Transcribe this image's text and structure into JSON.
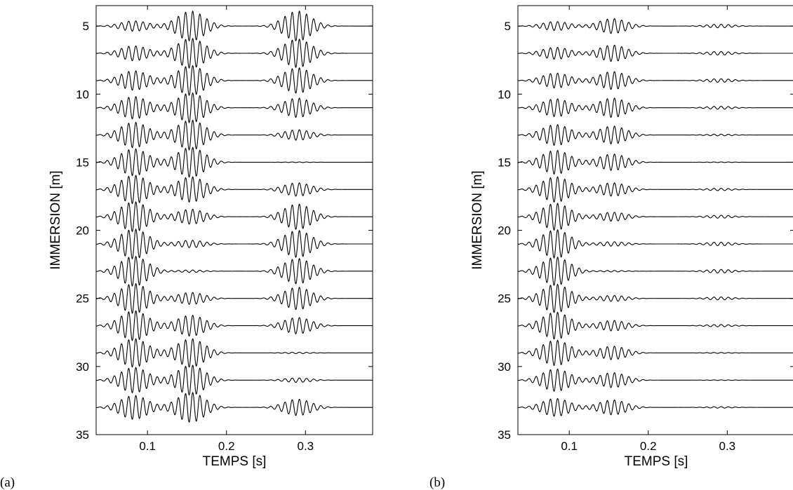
{
  "chart_data": [
    {
      "panel_label": "(a)",
      "type": "line",
      "xlabel": "TEMPS [s]",
      "ylabel": "IMMERSION [m]",
      "xlim": [
        0.035,
        0.385
      ],
      "ylim": [
        35,
        3.5
      ],
      "y_inverted": true,
      "xticks": [
        0.1,
        0.2,
        0.3
      ],
      "yticks": [
        5,
        10,
        15,
        20,
        25,
        30,
        35
      ],
      "grid": false,
      "carrier_frequency_hz": 110,
      "trace_spacing_m": 2,
      "max_trace_amplitude_m": 1.1,
      "traces": [
        {
          "depth": 5,
          "packets": [
            {
              "t0": 0.083,
              "amp": 0.35
            },
            {
              "t0": 0.155,
              "amp": 1.0
            },
            {
              "t0": 0.29,
              "amp": 1.0
            }
          ]
        },
        {
          "depth": 7,
          "packets": [
            {
              "t0": 0.083,
              "amp": 0.5
            },
            {
              "t0": 0.155,
              "amp": 1.0
            },
            {
              "t0": 0.29,
              "amp": 0.95
            }
          ]
        },
        {
          "depth": 9,
          "packets": [
            {
              "t0": 0.083,
              "amp": 0.65
            },
            {
              "t0": 0.155,
              "amp": 1.0
            },
            {
              "t0": 0.29,
              "amp": 0.85
            }
          ]
        },
        {
          "depth": 11,
          "packets": [
            {
              "t0": 0.083,
              "amp": 0.75
            },
            {
              "t0": 0.155,
              "amp": 1.0
            },
            {
              "t0": 0.29,
              "amp": 0.65
            }
          ]
        },
        {
          "depth": 13,
          "packets": [
            {
              "t0": 0.083,
              "amp": 0.85
            },
            {
              "t0": 0.155,
              "amp": 1.0
            },
            {
              "t0": 0.29,
              "amp": 0.35
            }
          ]
        },
        {
          "depth": 15,
          "packets": [
            {
              "t0": 0.083,
              "amp": 0.9
            },
            {
              "t0": 0.155,
              "amp": 1.0
            },
            {
              "t0": 0.29,
              "amp": 0.02
            }
          ]
        },
        {
          "depth": 17,
          "packets": [
            {
              "t0": 0.083,
              "amp": 0.95
            },
            {
              "t0": 0.155,
              "amp": 0.85
            },
            {
              "t0": 0.29,
              "amp": 0.45
            }
          ]
        },
        {
          "depth": 19,
          "packets": [
            {
              "t0": 0.083,
              "amp": 1.0
            },
            {
              "t0": 0.155,
              "amp": 0.5
            },
            {
              "t0": 0.29,
              "amp": 0.85
            }
          ]
        },
        {
          "depth": 21,
          "packets": [
            {
              "t0": 0.083,
              "amp": 1.0
            },
            {
              "t0": 0.155,
              "amp": 0.25
            },
            {
              "t0": 0.29,
              "amp": 0.9
            }
          ]
        },
        {
          "depth": 23,
          "packets": [
            {
              "t0": 0.083,
              "amp": 1.0
            },
            {
              "t0": 0.155,
              "amp": 0.08
            },
            {
              "t0": 0.29,
              "amp": 0.85
            }
          ]
        },
        {
          "depth": 25,
          "packets": [
            {
              "t0": 0.083,
              "amp": 1.0
            },
            {
              "t0": 0.155,
              "amp": 0.4
            },
            {
              "t0": 0.29,
              "amp": 0.75
            }
          ]
        },
        {
          "depth": 27,
          "packets": [
            {
              "t0": 0.083,
              "amp": 1.0
            },
            {
              "t0": 0.155,
              "amp": 0.7
            },
            {
              "t0": 0.29,
              "amp": 0.55
            }
          ]
        },
        {
          "depth": 29,
          "packets": [
            {
              "t0": 0.083,
              "amp": 0.95
            },
            {
              "t0": 0.155,
              "amp": 0.95
            },
            {
              "t0": 0.29,
              "amp": 0.05
            }
          ]
        },
        {
          "depth": 31,
          "packets": [
            {
              "t0": 0.083,
              "amp": 0.85
            },
            {
              "t0": 0.155,
              "amp": 1.0
            },
            {
              "t0": 0.29,
              "amp": 0.15
            }
          ]
        },
        {
          "depth": 33,
          "packets": [
            {
              "t0": 0.083,
              "amp": 0.8
            },
            {
              "t0": 0.155,
              "amp": 1.0
            },
            {
              "t0": 0.29,
              "amp": 0.55
            }
          ]
        }
      ]
    },
    {
      "panel_label": "(b)",
      "type": "line",
      "xlabel": "TEMPS [s]",
      "ylabel": "IMMERSION [m]",
      "xlim": [
        0.035,
        0.385
      ],
      "ylim": [
        35,
        3.5
      ],
      "y_inverted": true,
      "xticks": [
        0.1,
        0.2,
        0.3
      ],
      "yticks": [
        5,
        10,
        15,
        20,
        25,
        30,
        35
      ],
      "grid": false,
      "carrier_frequency_hz": 110,
      "trace_spacing_m": 2,
      "max_trace_amplitude_m": 1.1,
      "traces": [
        {
          "depth": 5,
          "packets": [
            {
              "t0": 0.083,
              "amp": 0.3
            },
            {
              "t0": 0.155,
              "amp": 0.5
            },
            {
              "t0": 0.29,
              "amp": 0.12
            }
          ]
        },
        {
          "depth": 7,
          "packets": [
            {
              "t0": 0.083,
              "amp": 0.4
            },
            {
              "t0": 0.155,
              "amp": 0.55
            },
            {
              "t0": 0.29,
              "amp": 0.12
            }
          ]
        },
        {
          "depth": 9,
          "packets": [
            {
              "t0": 0.083,
              "amp": 0.5
            },
            {
              "t0": 0.155,
              "amp": 0.6
            },
            {
              "t0": 0.29,
              "amp": 0.12
            }
          ]
        },
        {
          "depth": 11,
          "packets": [
            {
              "t0": 0.083,
              "amp": 0.6
            },
            {
              "t0": 0.155,
              "amp": 0.65
            },
            {
              "t0": 0.29,
              "amp": 0.1
            }
          ]
        },
        {
          "depth": 13,
          "packets": [
            {
              "t0": 0.083,
              "amp": 0.7
            },
            {
              "t0": 0.155,
              "amp": 0.6
            },
            {
              "t0": 0.29,
              "amp": 0.06
            }
          ]
        },
        {
          "depth": 15,
          "packets": [
            {
              "t0": 0.083,
              "amp": 0.8
            },
            {
              "t0": 0.155,
              "amp": 0.55
            },
            {
              "t0": 0.29,
              "amp": 0.02
            }
          ]
        },
        {
          "depth": 17,
          "packets": [
            {
              "t0": 0.083,
              "amp": 0.85
            },
            {
              "t0": 0.155,
              "amp": 0.45
            },
            {
              "t0": 0.29,
              "amp": 0.08
            }
          ]
        },
        {
          "depth": 19,
          "packets": [
            {
              "t0": 0.083,
              "amp": 0.9
            },
            {
              "t0": 0.155,
              "amp": 0.3
            },
            {
              "t0": 0.29,
              "amp": 0.1
            }
          ]
        },
        {
          "depth": 21,
          "packets": [
            {
              "t0": 0.083,
              "amp": 0.95
            },
            {
              "t0": 0.155,
              "amp": 0.15
            },
            {
              "t0": 0.29,
              "amp": 0.12
            }
          ]
        },
        {
          "depth": 23,
          "packets": [
            {
              "t0": 0.083,
              "amp": 0.95
            },
            {
              "t0": 0.155,
              "amp": 0.05
            },
            {
              "t0": 0.29,
              "amp": 0.12
            }
          ]
        },
        {
          "depth": 25,
          "packets": [
            {
              "t0": 0.083,
              "amp": 0.95
            },
            {
              "t0": 0.155,
              "amp": 0.2
            },
            {
              "t0": 0.29,
              "amp": 0.1
            }
          ]
        },
        {
          "depth": 27,
          "packets": [
            {
              "t0": 0.083,
              "amp": 0.9
            },
            {
              "t0": 0.155,
              "amp": 0.35
            },
            {
              "t0": 0.29,
              "amp": 0.08
            }
          ]
        },
        {
          "depth": 29,
          "packets": [
            {
              "t0": 0.083,
              "amp": 0.85
            },
            {
              "t0": 0.155,
              "amp": 0.45
            },
            {
              "t0": 0.29,
              "amp": 0.03
            }
          ]
        },
        {
          "depth": 31,
          "packets": [
            {
              "t0": 0.083,
              "amp": 0.75
            },
            {
              "t0": 0.155,
              "amp": 0.5
            },
            {
              "t0": 0.29,
              "amp": 0.02
            }
          ]
        },
        {
          "depth": 33,
          "packets": [
            {
              "t0": 0.083,
              "amp": 0.6
            },
            {
              "t0": 0.155,
              "amp": 0.5
            },
            {
              "t0": 0.29,
              "amp": 0.05
            }
          ]
        }
      ]
    }
  ]
}
